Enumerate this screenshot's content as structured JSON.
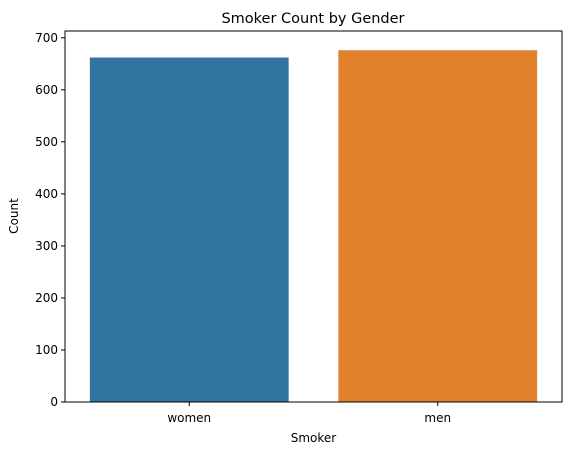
{
  "chart_data": {
    "type": "bar",
    "title": "Smoker Count by Gender",
    "xlabel": "Smoker",
    "ylabel": "Count",
    "categories": [
      "women",
      "men"
    ],
    "values": [
      662,
      676
    ],
    "colors": [
      "#3274a1",
      "#e1812c"
    ],
    "ylim": [
      0,
      713
    ],
    "yticks": [
      0,
      100,
      200,
      300,
      400,
      500,
      600,
      700
    ],
    "grid": false,
    "legend": "none"
  }
}
